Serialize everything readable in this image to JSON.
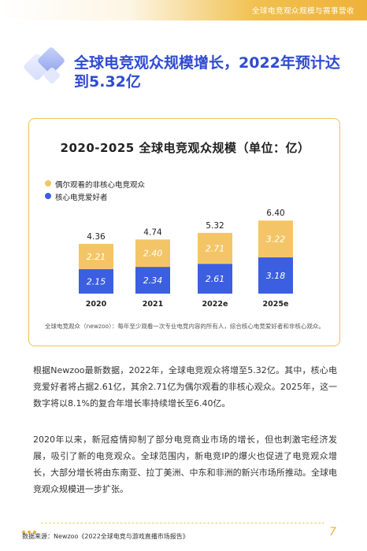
{
  "header": {
    "section_title": "全球电竞观众规模与赛事营收"
  },
  "title": "全球电竞观众规模增长，2022年预计达到5.32亿",
  "chart_card": {
    "note": "全球电竞观众（newzoo）：每年至少观看一次专业电竞内容的所有人，综合核心电竞爱好者和非核心观众。"
  },
  "chart_data": {
    "type": "bar",
    "stacked": true,
    "title": "2020-2025 全球电竞观众规模（单位：亿）",
    "categories": [
      "2020",
      "2021",
      "2022e",
      "2025e"
    ],
    "series": [
      {
        "name": "核心电竞爱好者",
        "values": [
          2.15,
          2.34,
          2.61,
          3.18
        ],
        "color": "#3b5fe0"
      },
      {
        "name": "偶尔观看的非核心电竞观众",
        "values": [
          2.21,
          2.4,
          2.71,
          3.22
        ],
        "color": "#f4c566"
      }
    ],
    "totals": [
      "4.36",
      "4.74",
      "5.32",
      "6.40"
    ],
    "segment_labels": [
      [
        "2.15",
        "2.34",
        "2.61",
        "3.18"
      ],
      [
        "2.21",
        "2.40",
        "2.71",
        "3.22"
      ]
    ],
    "legend_position": "top-left",
    "grid": false
  },
  "body": {
    "p1": "根据Newzoo最新数据，2022年，全球电竞观众将增至5.32亿。其中，核心电竞爱好者将占据2.61亿，其余2.71亿为偶尔观看的非核心观众。2025年，这一数字将以8.1%的复合年增长率持续增长至6.40亿。",
    "p2": "2020年以来，新冠疫情抑制了部分电竞商业市场的增长，但也刺激宅经济发展，吸引了新的电竞观众。全球范围内，新电竞IP的爆火也促进了电竞观众增长，大部分增长将由东南亚、拉丁美洲、中东和非洲的新兴市场所推动。全球电竞观众规模进一步扩张。"
  },
  "footer": {
    "source": "数据来源：Newzoo《2022全球电竞与游戏直播市场报告》",
    "page_number": "7"
  }
}
